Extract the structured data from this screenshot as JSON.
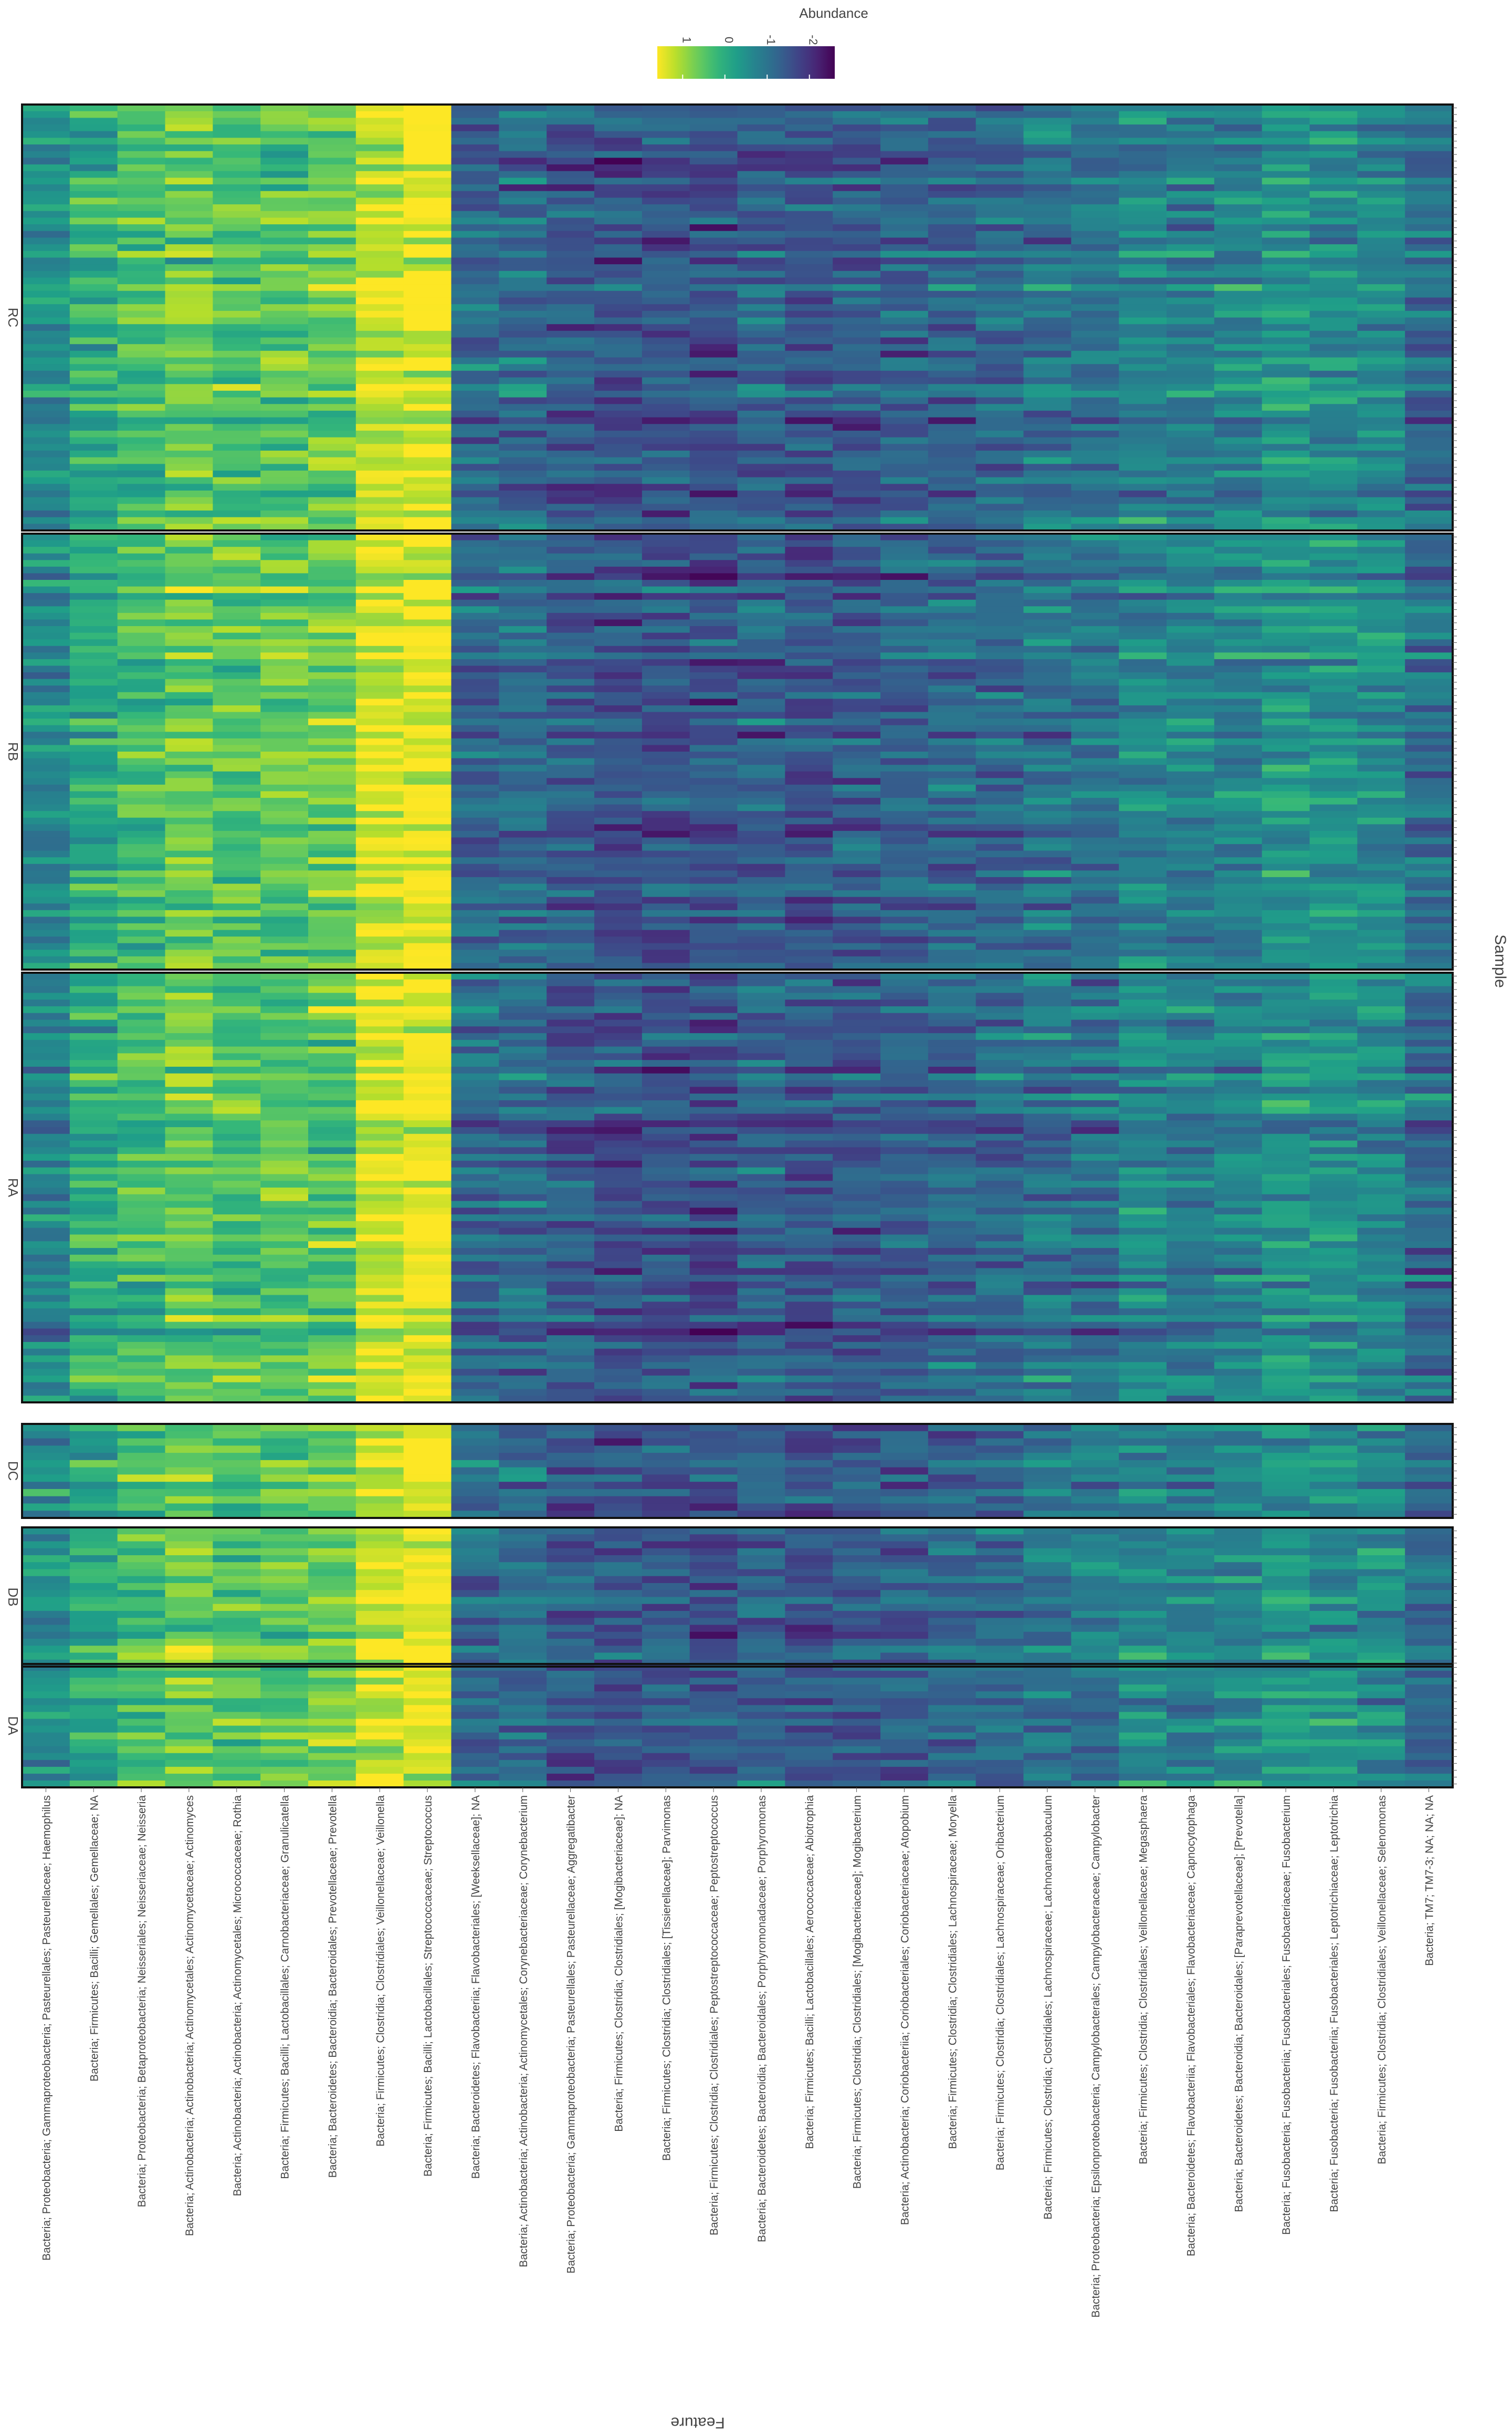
{
  "chart_data": {
    "type": "heatmap",
    "xlabel": "Feature",
    "ylabel": "Sample",
    "legend": {
      "title": "Abundance",
      "ticks": [
        1,
        0,
        -1,
        -2
      ],
      "range": [
        -2.6,
        1.6
      ],
      "colormap": "viridis",
      "placement": "top-right"
    },
    "features": [
      "Bacteria; Proteobacteria; Gammaproteobacteria; Pasteurellales; Pasteurellaceae; Haemophilus",
      "Bacteria; Firmicutes; Bacilli; Gemellales; Gemellaceae; NA",
      "Bacteria; Proteobacteria; Betaproteobacteria; Neisseriales; Neisseriaceae; Neisseria",
      "Bacteria; Actinobacteria; Actinobacteria; Actinomycetales; Actinomycetaceae; Actinomyces",
      "Bacteria; Actinobacteria; Actinobacteria; Actinomycetales; Micrococcaceae; Rothia",
      "Bacteria; Firmicutes; Bacilli; Lactobacillales; Carnobacteriaceae; Granulicatella",
      "Bacteria; Bacteroidetes; Bacteroidia; Bacteroidales; Prevotellaceae; Prevotella",
      "Bacteria; Firmicutes; Clostridia; Clostridiales; Veillonellaceae; Veillonella",
      "Bacteria; Firmicutes; Bacilli; Lactobacillales; Streptococcaceae; Streptococcus",
      "Bacteria; Bacteroidetes; Flavobacteriia; Flavobacteriales; [Weeksellaceae]; NA",
      "Bacteria; Actinobacteria; Actinobacteria; Actinomycetales; Corynebacteriaceae; Corynebacterium",
      "Bacteria; Proteobacteria; Gammaproteobacteria; Pasteurellales; Pasteurellaceae; Aggregatibacter",
      "Bacteria; Firmicutes; Clostridia; Clostridiales; [Mogibacteriaceae]; NA",
      "Bacteria; Firmicutes; Clostridia; Clostridiales; [Tissierellaceae]; Parvimonas",
      "Bacteria; Firmicutes; Clostridia; Clostridiales; Peptostreptococcaceae; Peptostreptococcus",
      "Bacteria; Bacteroidetes; Bacteroidia; Bacteroidales; Porphyromonadaceae; Porphyromonas",
      "Bacteria; Firmicutes; Bacilli; Lactobacillales; Aerococcaceae; Abiotrophia",
      "Bacteria; Firmicutes; Clostridia; Clostridiales; [Mogibacteriaceae]; Mogibacterium",
      "Bacteria; Actinobacteria; Coriobacteriia; Coriobacteriales; Coriobacteriaceae; Atopobium",
      "Bacteria; Firmicutes; Clostridia; Clostridiales; Lachnospiraceae; Moryella",
      "Bacteria; Firmicutes; Clostridia; Clostridiales; Lachnospiraceae; Oribacterium",
      "Bacteria; Firmicutes; Clostridia; Clostridiales; Lachnospiraceae; Lachnoanaerobaculum",
      "Bacteria; Proteobacteria; Epsilonproteobacteria; Campylobacterales; Campylobacteraceae; Campylobacter",
      "Bacteria; Firmicutes; Clostridia; Clostridiales; Veillonellaceae; Megasphaera",
      "Bacteria; Bacteroidetes; Flavobacteriia; Flavobacteriales; Flavobacteriaceae; Capnocytophaga",
      "Bacteria; Bacteroidetes; Bacteroidia; Bacteroidales; [Paraprevotellaceae]; [Prevotella]",
      "Bacteria; Fusobacteria; Fusobacteriia; Fusobacteriales; Fusobacteriaceae; Fusobacterium",
      "Bacteria; Fusobacteria; Fusobacteriia; Fusobacteriales; Leptotrichiaceae; Leptotrichia",
      "Bacteria; Firmicutes; Clostridia; Clostridiales; Veillonellaceae; Selenomonas",
      "Bacteria; TM7; TM7-3; NA; NA; NA"
    ],
    "feature_baseline_abundance": [
      -0.6,
      0.0,
      0.3,
      0.6,
      0.4,
      0.5,
      0.6,
      1.3,
      1.5,
      -1.2,
      -1.1,
      -1.4,
      -1.5,
      -1.5,
      -1.6,
      -1.3,
      -1.5,
      -1.4,
      -1.3,
      -1.2,
      -1.2,
      -1.0,
      -1.0,
      -0.7,
      -0.8,
      -0.7,
      -0.4,
      -0.5,
      -0.6,
      -1.1
    ],
    "panels": [
      {
        "label": "RC",
        "n_samples": 64
      },
      {
        "label": "RB",
        "n_samples": 66
      },
      {
        "label": "RA",
        "n_samples": 64
      },
      {
        "label": "DC",
        "n_samples": 13
      },
      {
        "label": "DB",
        "n_samples": 20
      },
      {
        "label": "DA",
        "n_samples": 18
      }
    ]
  }
}
